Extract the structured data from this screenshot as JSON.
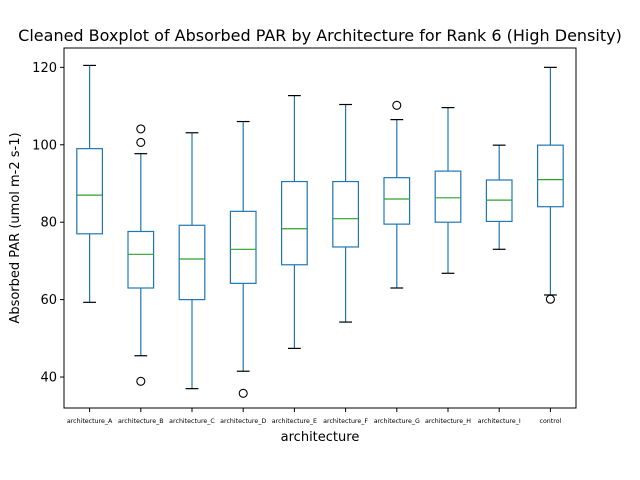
{
  "chart_data": {
    "type": "boxplot",
    "title": "Cleaned Boxplot of Absorbed PAR by Architecture for Rank 6 (High Density)",
    "xlabel": "architecture",
    "ylabel": "Absorbed PAR (umol m-2 s-1)",
    "ylim": [
      32,
      125
    ],
    "yticks": [
      40,
      60,
      80,
      100,
      120
    ],
    "grid": false,
    "colors": {
      "box": "#1f77b4",
      "median": "#2ca02c",
      "caps": "#000000",
      "outlier": "#000000"
    },
    "categories": [
      "architecture_A",
      "architecture_B",
      "architecture_C",
      "architecture_D",
      "architecture_E",
      "architecture_F",
      "architecture_G",
      "architecture_H",
      "architecture_I",
      "control"
    ],
    "boxes": [
      {
        "whislo": 59.3,
        "q1": 77.0,
        "med": 87.0,
        "q3": 99.0,
        "whishi": 120.5,
        "fliers": []
      },
      {
        "whislo": 45.5,
        "q1": 63.0,
        "med": 71.7,
        "q3": 77.6,
        "whishi": 97.7,
        "fliers": [
          104.1,
          100.6,
          38.9
        ]
      },
      {
        "whislo": 37.0,
        "q1": 60.0,
        "med": 70.5,
        "q3": 79.2,
        "whishi": 103.1,
        "fliers": []
      },
      {
        "whislo": 41.5,
        "q1": 64.2,
        "med": 73.0,
        "q3": 82.8,
        "whishi": 106.0,
        "fliers": [
          35.8
        ]
      },
      {
        "whislo": 47.4,
        "q1": 69.0,
        "med": 78.3,
        "q3": 90.5,
        "whishi": 112.7,
        "fliers": []
      },
      {
        "whislo": 54.2,
        "q1": 73.6,
        "med": 80.9,
        "q3": 90.5,
        "whishi": 110.4,
        "fliers": []
      },
      {
        "whislo": 63.0,
        "q1": 79.5,
        "med": 86.0,
        "q3": 91.5,
        "whishi": 106.5,
        "fliers": [
          110.2
        ]
      },
      {
        "whislo": 66.8,
        "q1": 80.0,
        "med": 86.3,
        "q3": 93.2,
        "whishi": 109.6,
        "fliers": []
      },
      {
        "whislo": 73.0,
        "q1": 80.2,
        "med": 85.7,
        "q3": 90.9,
        "whishi": 99.9,
        "fliers": []
      },
      {
        "whislo": 61.2,
        "q1": 84.0,
        "med": 91.0,
        "q3": 99.9,
        "whishi": 120.0,
        "fliers": [
          60.1
        ]
      }
    ]
  }
}
